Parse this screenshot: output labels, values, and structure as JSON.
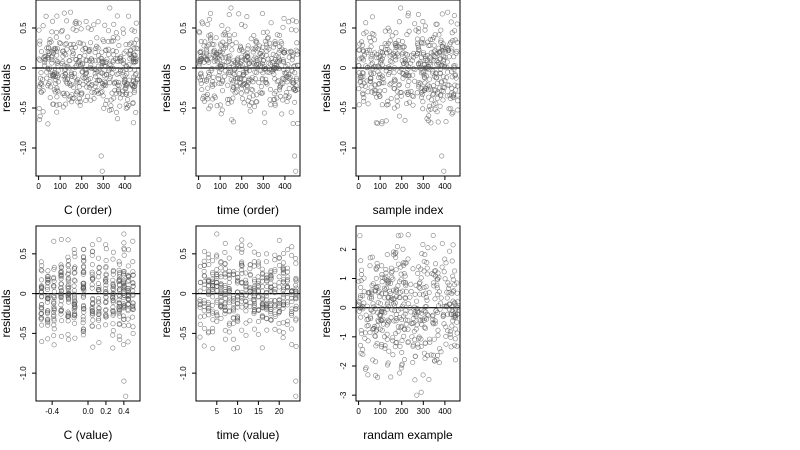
{
  "chart_data": [
    {
      "type": "scatter",
      "xlabel": "C (order)",
      "ylabel": "residuals",
      "xlim": [
        -12,
        470
      ],
      "ylim": [
        -1.35,
        0.85
      ],
      "xticks": [
        0,
        100,
        200,
        300,
        400
      ],
      "xtick_labels": [
        "0",
        "100",
        "200",
        "300",
        "400"
      ],
      "yticks": [
        0.5,
        0,
        -0.5,
        -1.0
      ],
      "ytick_labels": [
        "0.5",
        "0",
        "-0.5",
        "-1.0"
      ],
      "hline": 0,
      "n": 462,
      "x_kind": "index",
      "outliers": [
        [
          290,
          -1.1
        ],
        [
          295,
          -1.29
        ],
        [
          330,
          0.75
        ]
      ]
    },
    {
      "type": "scatter",
      "xlabel": "time (order)",
      "ylabel": "residuals",
      "xlim": [
        -12,
        470
      ],
      "ylim": [
        -1.35,
        0.85
      ],
      "xticks": [
        0,
        100,
        200,
        300,
        400
      ],
      "xtick_labels": [
        "0",
        "100",
        "200",
        "300",
        "400"
      ],
      "yticks": [
        0.5,
        0,
        -0.5,
        -1.0
      ],
      "ytick_labels": [
        "0.5",
        "0",
        "-0.5",
        "-1.0"
      ],
      "hline": 0,
      "n": 462,
      "x_kind": "index",
      "outliers": [
        [
          445,
          -1.1
        ],
        [
          450,
          -1.29
        ],
        [
          150,
          0.75
        ]
      ]
    },
    {
      "type": "scatter",
      "xlabel": "sample index",
      "ylabel": "residuals",
      "xlim": [
        -12,
        470
      ],
      "ylim": [
        -1.35,
        0.85
      ],
      "xticks": [
        0,
        100,
        200,
        300,
        400
      ],
      "xtick_labels": [
        "0",
        "100",
        "200",
        "300",
        "400"
      ],
      "yticks": [
        0.5,
        0,
        -0.5,
        -1.0
      ],
      "ytick_labels": [
        "0.5",
        "0",
        "-0.5",
        "-1.0"
      ],
      "hline": 0,
      "n": 462,
      "x_kind": "index",
      "outliers": [
        [
          385,
          -1.1
        ],
        [
          395,
          -1.29
        ],
        [
          195,
          0.75
        ]
      ]
    },
    {
      "type": "scatter",
      "xlabel": "C (value)",
      "ylabel": "residuals",
      "xlim": [
        -0.58,
        0.58
      ],
      "ylim": [
        -1.35,
        0.85
      ],
      "xticks": [
        -0.4,
        0.0,
        0.2,
        0.4
      ],
      "xtick_labels": [
        "-0.4",
        "0.0",
        "0.2",
        "0.4"
      ],
      "yticks": [
        0.5,
        0,
        -0.5,
        -1.0
      ],
      "ytick_labels": [
        "0.5",
        "0",
        "-0.5",
        "-1.0"
      ],
      "hline": 0,
      "n": 462,
      "x_kind": "columns",
      "x_values": [
        -0.52,
        -0.45,
        -0.38,
        -0.3,
        -0.22,
        -0.15,
        -0.05,
        0.05,
        0.12,
        0.2,
        0.28,
        0.35,
        0.4,
        0.45,
        0.5
      ],
      "outliers": [
        [
          0.4,
          -1.1
        ],
        [
          0.42,
          -1.29
        ],
        [
          0.4,
          0.75
        ]
      ]
    },
    {
      "type": "scatter",
      "xlabel": "time (value)",
      "ylabel": "residuals",
      "xlim": [
        0,
        25
      ],
      "ylim": [
        -1.35,
        0.85
      ],
      "xticks": [
        5,
        10,
        15,
        20
      ],
      "xtick_labels": [
        "5",
        "10",
        "15",
        "20"
      ],
      "yticks": [
        0.5,
        0,
        -0.5,
        -1.0
      ],
      "ytick_labels": [
        "0.5",
        "0",
        "-0.5",
        "-1.0"
      ],
      "hline": 0,
      "n": 462,
      "x_kind": "columns",
      "x_values": [
        1,
        2,
        3,
        4,
        5,
        6,
        7,
        8,
        9,
        10,
        11,
        12,
        13,
        14,
        15,
        16,
        17,
        18,
        19,
        20,
        21,
        22,
        23,
        24
      ],
      "outliers": [
        [
          24,
          -1.1
        ],
        [
          24,
          -1.29
        ],
        [
          5,
          0.75
        ]
      ]
    },
    {
      "type": "scatter",
      "xlabel": "randam example",
      "ylabel": "residuals",
      "xlim": [
        -12,
        470
      ],
      "ylim": [
        -3.2,
        2.8
      ],
      "xticks": [
        0,
        100,
        200,
        300,
        400
      ],
      "xtick_labels": [
        "0",
        "100",
        "200",
        "300",
        "400"
      ],
      "yticks": [
        2,
        1,
        0,
        -1,
        -2,
        -3
      ],
      "ytick_labels": [
        "2",
        "1",
        "0",
        "-1",
        "-2",
        "-3"
      ],
      "hline": 0,
      "n": 462,
      "x_kind": "index",
      "outliers": [
        [
          270,
          -3.0
        ],
        [
          290,
          -2.9
        ],
        [
          230,
          2.5
        ]
      ]
    }
  ]
}
